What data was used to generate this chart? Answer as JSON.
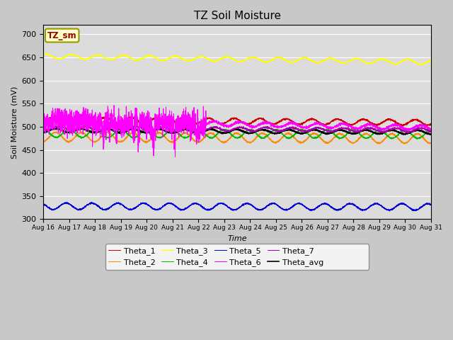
{
  "title": "TZ Soil Moisture",
  "xlabel": "Time",
  "ylabel": "Soil Moisture (mV)",
  "ylim": [
    300,
    720
  ],
  "yticks": [
    300,
    350,
    400,
    450,
    500,
    550,
    600,
    650,
    700
  ],
  "background_color": "#dcdcdc",
  "fig_bg": "#c8c8c8",
  "series": {
    "Theta_1": {
      "color": "#cc0000",
      "base": 515,
      "amplitude": 6,
      "trend": -0.4,
      "noise": 1.0,
      "period": 1.0
    },
    "Theta_2": {
      "color": "#ff8800",
      "base": 478,
      "amplitude": 10,
      "trend": -0.25,
      "noise": 0.8,
      "period": 1.0
    },
    "Theta_3": {
      "color": "#ffff00",
      "base": 652,
      "amplitude": 5,
      "trend": -0.8,
      "noise": 0.5,
      "period": 1.0
    },
    "Theta_4": {
      "color": "#00bb00",
      "base": 486,
      "amplitude": 9,
      "trend": -0.15,
      "noise": 0.8,
      "period": 1.0
    },
    "Theta_5": {
      "color": "#0000dd",
      "base": 328,
      "amplitude": 7,
      "trend": -0.1,
      "noise": 0.8,
      "period": 1.0
    },
    "Theta_6": {
      "color": "#ff00ff",
      "base": 513,
      "amplitude": 5,
      "trend": -1.0,
      "noise": 1.5,
      "period": 1.0
    },
    "Theta_7": {
      "color": "#aa00aa",
      "base": 497,
      "amplitude": 4,
      "trend": -0.3,
      "noise": 1.0,
      "period": 1.0
    },
    "Theta_avg": {
      "color": "#000000",
      "base": 492,
      "amplitude": 4,
      "trend": -0.25,
      "noise": 0.6,
      "period": 1.0
    }
  },
  "n_points": 4320,
  "days": 15,
  "xtick_labels": [
    "Aug 16",
    "Aug 17",
    "Aug 18",
    "Aug 19",
    "Aug 20",
    "Aug 21",
    "Aug 22",
    "Aug 23",
    "Aug 24",
    "Aug 25",
    "Aug 26",
    "Aug 27",
    "Aug 28",
    "Aug 29",
    "Aug 30",
    "Aug 31"
  ],
  "box_label": "TZ_sm",
  "box_color": "#ffffc8",
  "box_edge_color": "#999900",
  "legend_ncol": 6
}
